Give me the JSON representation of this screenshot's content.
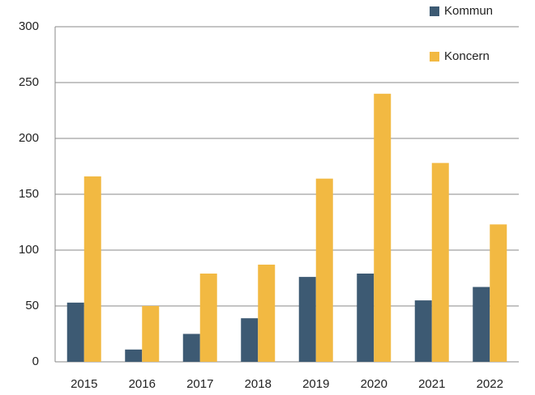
{
  "chart_data": {
    "type": "bar",
    "categories": [
      "2015",
      "2016",
      "2017",
      "2018",
      "2019",
      "2020",
      "2021",
      "2022"
    ],
    "series": [
      {
        "name": "Kommun",
        "color": "#3d5a73",
        "values": [
          53,
          11,
          25,
          39,
          76,
          79,
          55,
          67
        ]
      },
      {
        "name": "Koncern",
        "color": "#f2b942",
        "values": [
          166,
          50,
          79,
          87,
          164,
          240,
          178,
          123
        ]
      }
    ],
    "ylim": [
      0,
      300
    ],
    "yticks": [
      0,
      50,
      100,
      150,
      200,
      250,
      300
    ],
    "grid": true,
    "legend": "top-right"
  }
}
